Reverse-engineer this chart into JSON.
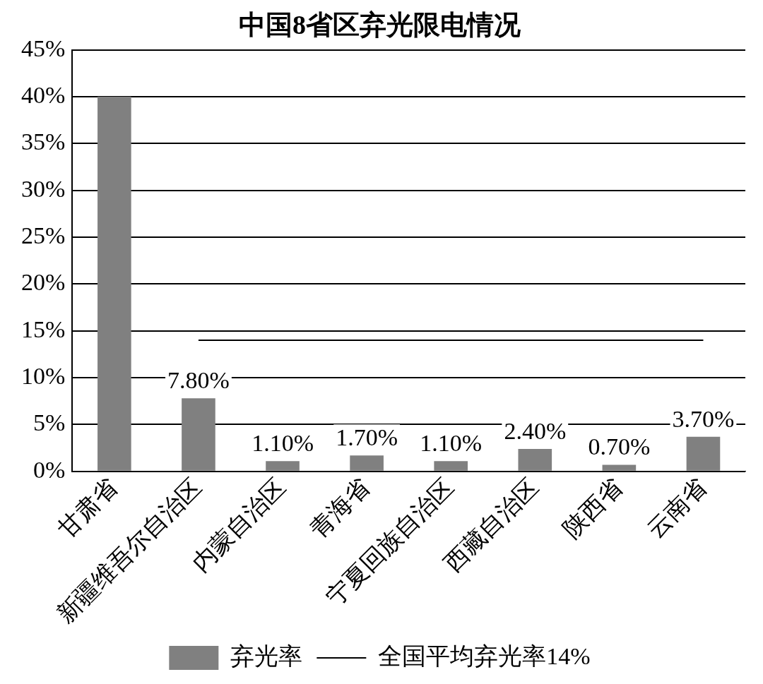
{
  "chart_data": {
    "type": "bar",
    "title": "中国8省区弃光限电情况",
    "categories": [
      "甘肃省",
      "新疆维吾尔自治区",
      "内蒙自治区",
      "青海省",
      "宁夏回族自治区",
      "西藏自治区",
      "陕西省",
      "云南省"
    ],
    "series": [
      {
        "name": "弃光率",
        "color": "#808080",
        "values": [
          40,
          7.8,
          1.1,
          1.7,
          1.1,
          2.4,
          0.7,
          3.7
        ],
        "value_labels": [
          null,
          "7.80%",
          "1.10%",
          "1.70%",
          "1.10%",
          "2.40%",
          "0.70%",
          "3.70%"
        ]
      },
      {
        "name": "全国平均弃光率14%",
        "type": "line",
        "color": "#000000",
        "values": [
          null,
          14,
          14,
          14,
          14,
          14,
          14,
          14
        ]
      }
    ],
    "ylim": [
      0,
      45
    ],
    "yticks": [
      {
        "value": 0,
        "label": "0%"
      },
      {
        "value": 5,
        "label": "5%"
      },
      {
        "value": 10,
        "label": "10%"
      },
      {
        "value": 15,
        "label": "15%"
      },
      {
        "value": 20,
        "label": "20%"
      },
      {
        "value": 25,
        "label": "25%"
      },
      {
        "value": 30,
        "label": "30%"
      },
      {
        "value": 35,
        "label": "35%"
      },
      {
        "value": 40,
        "label": "40%"
      },
      {
        "value": 45,
        "label": "45%"
      }
    ],
    "grid": "y",
    "legend": "bottom",
    "marker": "none",
    "line_style": "solid"
  }
}
